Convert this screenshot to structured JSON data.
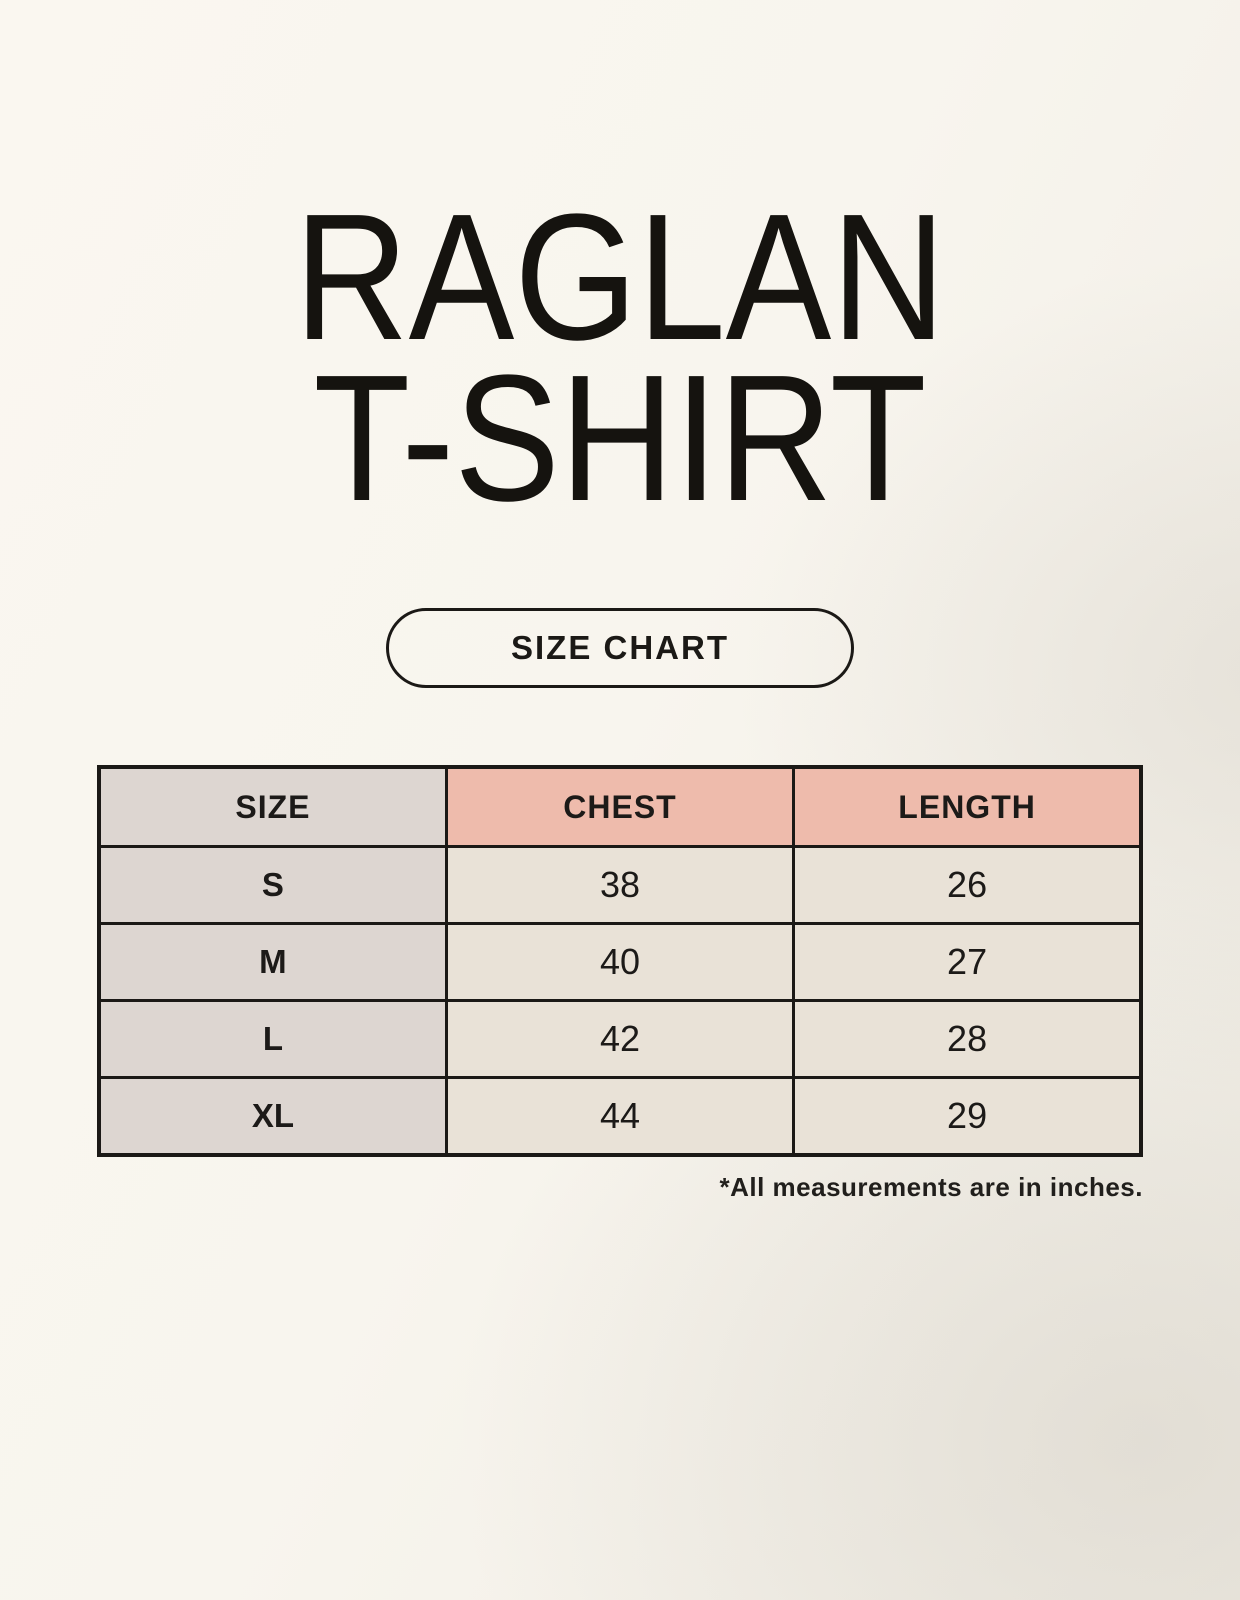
{
  "header": {
    "title_line1": "RAGLAN",
    "title_line2": "T-SHIRT",
    "size_chart_label": "SIZE CHART"
  },
  "table": {
    "columns": [
      "SIZE",
      "CHEST",
      "LENGTH"
    ],
    "rows": [
      {
        "size": "S",
        "chest": "38",
        "length": "26"
      },
      {
        "size": "M",
        "chest": "40",
        "length": "27"
      },
      {
        "size": "L",
        "chest": "42",
        "length": "28"
      },
      {
        "size": "XL",
        "chest": "44",
        "length": "29"
      }
    ]
  },
  "footnote": "*All measurements are in inches.",
  "colors": {
    "background": "#f8f5ee",
    "size_column_bg": "#ddd6d1",
    "accent_header_bg": "#eebbac",
    "cell_bg": "#e9e2d7",
    "table_border": "#1b1916",
    "text": "#1c1a18"
  }
}
